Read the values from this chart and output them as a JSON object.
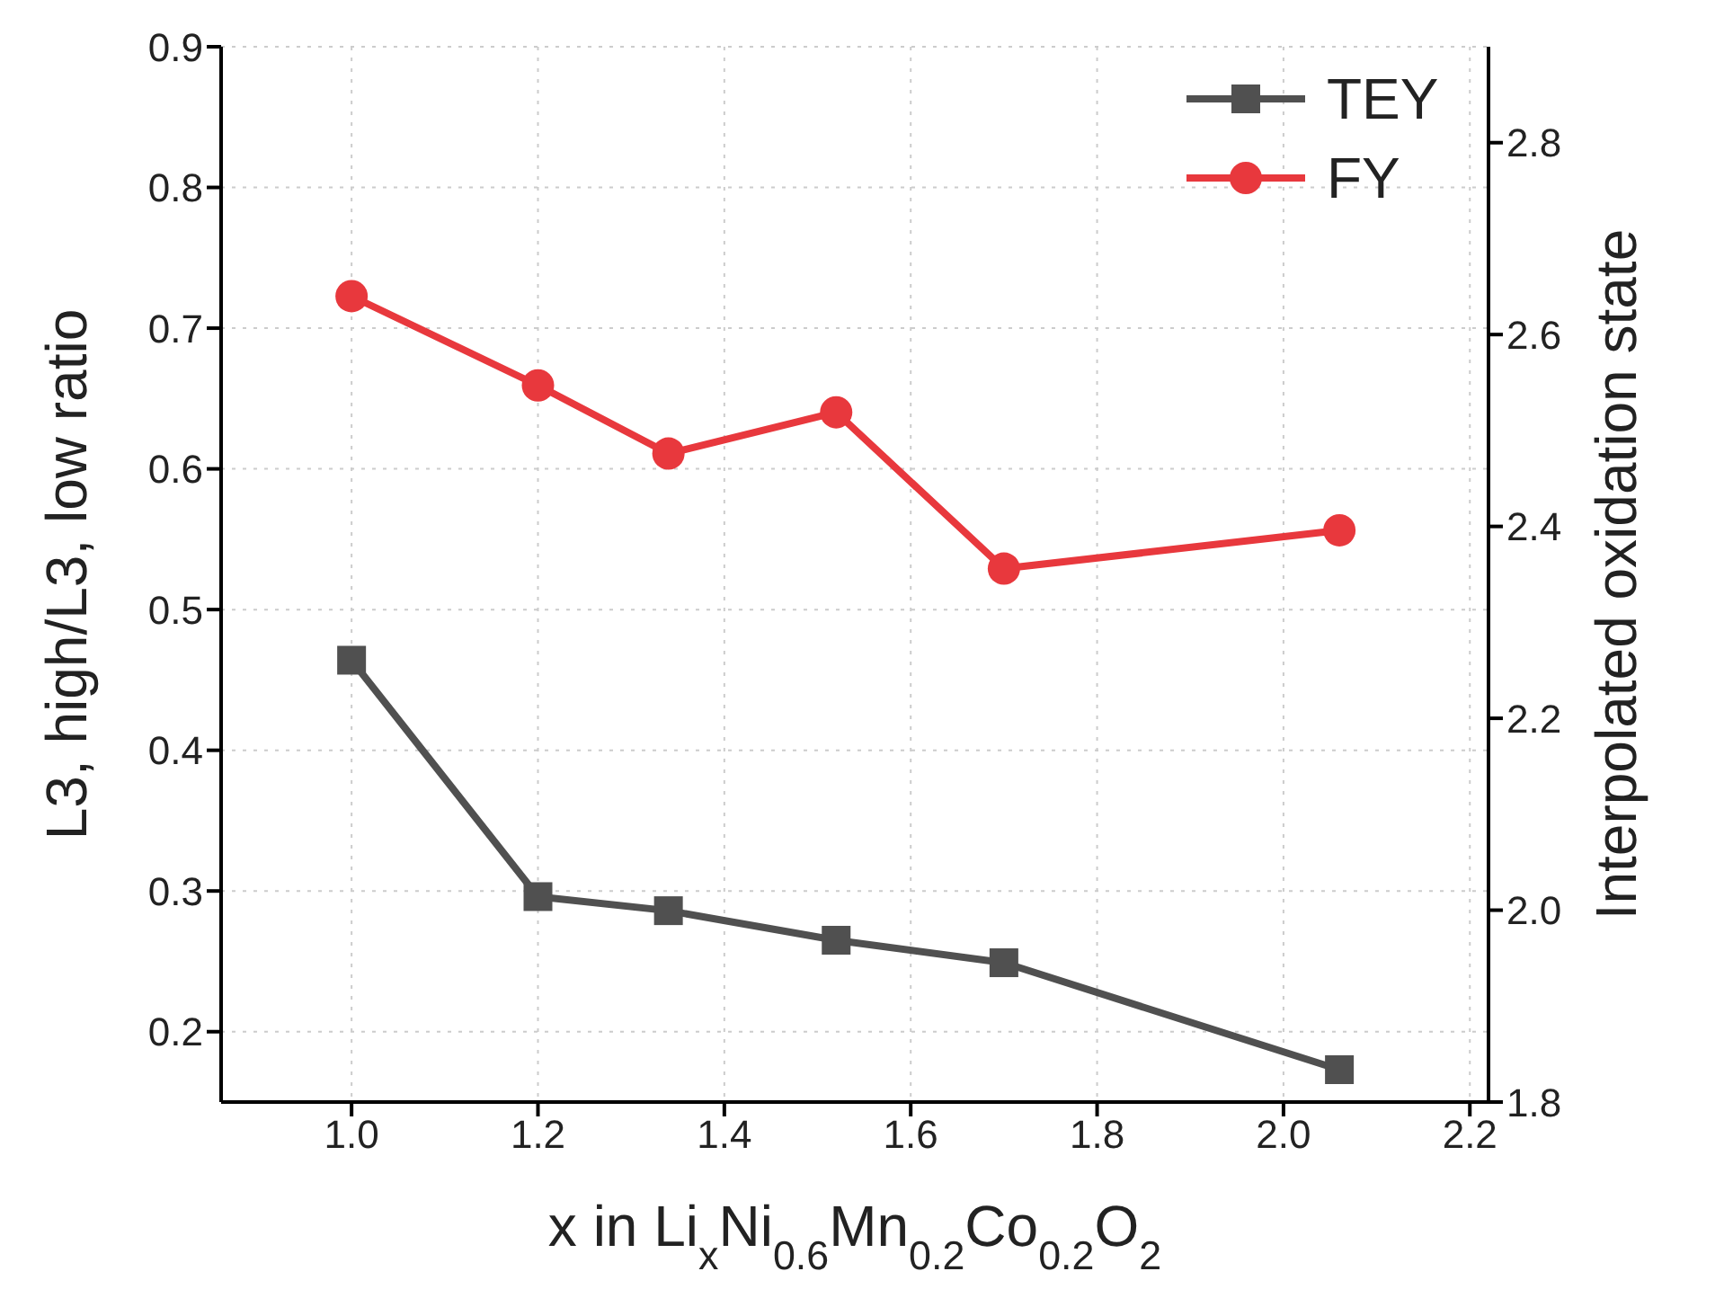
{
  "chart_data": {
    "type": "line",
    "xlabel": "x in Li$_{x}$Ni$_{0.6}$Mn$_{0.2}$Co$_{0.2}$O$_{2}$",
    "ylabel": "L3, high/L3, low ratio",
    "y2label": "Interpolated oxidation state",
    "x": [
      1.0,
      1.2,
      1.34,
      1.52,
      1.7,
      2.06
    ],
    "series": [
      {
        "name": "TEY",
        "color": "#505050",
        "marker": "square",
        "values": [
          0.464,
          0.296,
          0.286,
          0.265,
          0.249,
          0.173
        ]
      },
      {
        "name": "FY",
        "color": "#e8383d",
        "marker": "circle",
        "axis": "y2",
        "values": [
          2.64,
          2.547,
          2.476,
          2.519,
          2.356,
          2.396
        ]
      }
    ],
    "xlim": [
      0.86,
      2.22
    ],
    "xticks": [
      {
        "value": 1,
        "label": "1.0"
      },
      1.2,
      1.4,
      1.6,
      1.8,
      {
        "value": 2,
        "label": "2.0"
      },
      2.2
    ],
    "ylim": [
      0.15,
      0.9
    ],
    "yticks": [
      0.2,
      0.3,
      0.4,
      0.5,
      0.6,
      0.7,
      0.8,
      0.9
    ],
    "y2lim": [
      1.8,
      2.9
    ],
    "y2ticks": [
      1.8,
      {
        "value": 2,
        "label": "2.0"
      },
      2.2,
      2.4,
      2.6,
      2.8
    ],
    "grid": true,
    "legend": "top right",
    "line_style": "solid"
  }
}
